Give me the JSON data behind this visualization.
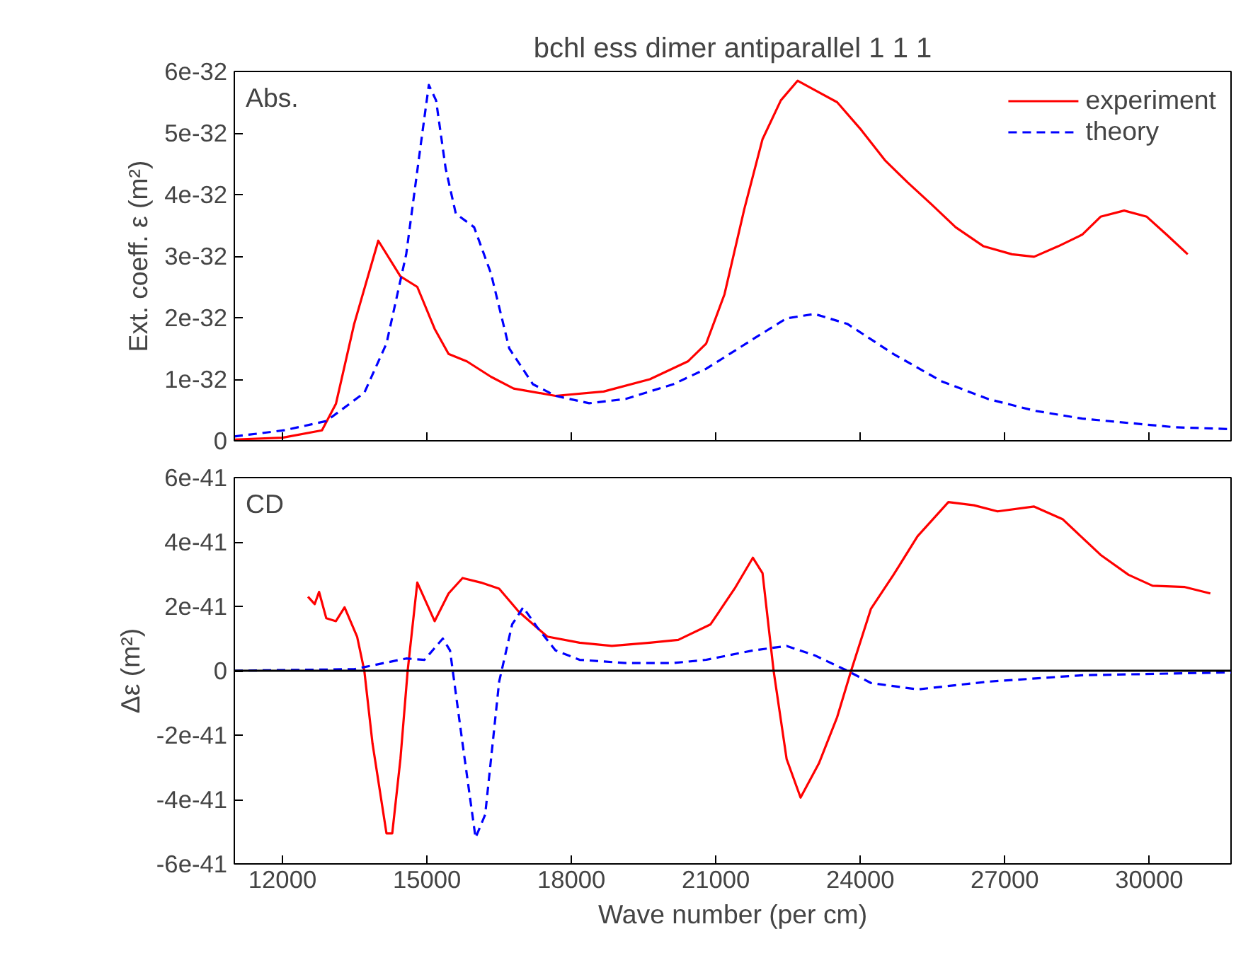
{
  "chart_data": [
    {
      "type": "line",
      "title": "bchl ess dimer antiparallel 1 1 1",
      "ylabel": "Ext. coeff. ε (m²)",
      "annotations": [
        "Abs."
      ],
      "xlim": [
        11000,
        31700
      ],
      "xticks": [
        12000,
        15000,
        18000,
        21000,
        24000,
        27000,
        30000
      ],
      "ylim": [
        0,
        6e-32
      ],
      "yticks": [
        0,
        {
          "value": 1e-32,
          "label": "1e-32"
        },
        {
          "value": 2e-32,
          "label": "2e-32"
        },
        {
          "value": 3e-32,
          "label": "3e-32"
        },
        {
          "value": 4e-32,
          "label": "4e-32"
        },
        {
          "value": 5e-32,
          "label": "5e-32"
        },
        {
          "value": 6e-32,
          "label": "6e-32"
        }
      ],
      "tick_labels": "y",
      "legend": "top right",
      "grid": false,
      "series": [
        {
          "name": "experiment",
          "color": "#ff0000",
          "line_style": "solid",
          "x": [
            11000,
            12000,
            12820,
            13110,
            13490,
            13990,
            14450,
            14800,
            15160,
            15450,
            15830,
            16330,
            16800,
            17670,
            18670,
            19630,
            20420,
            20800,
            21180,
            21590,
            21970,
            22350,
            22700,
            23050,
            23520,
            24020,
            24510,
            24980,
            25480,
            25980,
            26560,
            27150,
            27610,
            28110,
            28610,
            28990,
            29480,
            29950,
            30360,
            30800
          ],
          "values": [
            2e-34,
            5e-34,
            1.7e-33,
            6e-33,
            1.9e-32,
            3.25e-32,
            2.67e-32,
            2.5e-32,
            1.82e-32,
            1.41e-32,
            1.29e-32,
            1.04e-32,
            8.5e-33,
            7.3e-33,
            8e-33,
            1e-32,
            1.29e-32,
            1.58e-32,
            2.38e-32,
            3.76e-32,
            4.9e-32,
            5.53e-32,
            5.85e-32,
            5.7e-32,
            5.5e-32,
            5.05e-32,
            4.56e-32,
            4.2e-32,
            3.84e-32,
            3.47e-32,
            3.16e-32,
            3.03e-32,
            2.99e-32,
            3.16e-32,
            3.35e-32,
            3.64e-32,
            3.74e-32,
            3.64e-32,
            3.35e-32,
            3.03e-32
          ]
        },
        {
          "name": "theory",
          "color": "#0000ff",
          "line_style": "dashed",
          "x": [
            11000,
            12030,
            12910,
            13700,
            14160,
            14570,
            14870,
            15040,
            15190,
            15390,
            15600,
            15980,
            16330,
            16710,
            17200,
            17670,
            18370,
            19130,
            20120,
            20800,
            21770,
            22470,
            23050,
            23730,
            24690,
            25680,
            26650,
            27610,
            28610,
            29570,
            30540,
            31700
          ],
          "values": [
            7e-34,
            1.7e-33,
            3.2e-33,
            7.8e-33,
            1.58e-32,
            3.03e-32,
            4.8e-32,
            5.78e-32,
            5.53e-32,
            4.42e-32,
            3.69e-32,
            3.47e-32,
            2.72e-32,
            1.5e-32,
            9.2e-33,
            7.3e-33,
            6.1e-33,
            6.8e-33,
            9.2e-33,
            1.17e-32,
            1.65e-32,
            1.99e-32,
            2.06e-32,
            1.9e-32,
            1.41e-32,
            9.7e-33,
            6.8e-33,
            4.9e-33,
            3.6e-33,
            2.9e-33,
            2.2e-33,
            1.9e-33
          ]
        }
      ]
    },
    {
      "type": "line",
      "xlabel": "Wave number (per cm)",
      "ylabel": "Δε (m²)",
      "annotations": [
        "CD"
      ],
      "xlim": [
        11000,
        31700
      ],
      "xticks": [
        12000,
        15000,
        18000,
        21000,
        24000,
        27000,
        30000
      ],
      "ylim": [
        -6e-41,
        6e-41
      ],
      "yticks": [
        {
          "value": -6e-41,
          "label": "-6e-41"
        },
        {
          "value": -4e-41,
          "label": "-4e-41"
        },
        {
          "value": -2e-41,
          "label": "-2e-41"
        },
        0,
        {
          "value": 2e-41,
          "label": "2e-41"
        },
        {
          "value": 4e-41,
          "label": "4e-41"
        },
        {
          "value": 6e-41,
          "label": "6e-41"
        }
      ],
      "grid": false,
      "ref_lines": [
        {
          "axis": "y",
          "value": 0,
          "color": "#000000",
          "line_style": "solid"
        }
      ],
      "series": [
        {
          "color": "#ff0000",
          "line_style": "solid",
          "x": [
            12530,
            12670,
            12760,
            12910,
            13110,
            13290,
            13550,
            13700,
            13870,
            14160,
            14280,
            14450,
            14600,
            14800,
            15160,
            15450,
            15740,
            16120,
            16500,
            16910,
            17500,
            18170,
            18840,
            19630,
            20220,
            20890,
            21390,
            21770,
            21970,
            22200,
            22470,
            22760,
            23140,
            23520,
            23810,
            24220,
            24690,
            25190,
            25830,
            26360,
            26850,
            27610,
            28200,
            28990,
            29570,
            30070,
            30740,
            31270
          ],
          "values": [
            2.3e-41,
            2.07e-41,
            2.45e-41,
            1.63e-41,
            1.54e-41,
            1.97e-41,
            1.06e-41,
            0,
            -2.26e-41,
            -5.05e-41,
            -5.05e-41,
            -2.74e-41,
            0,
            2.74e-41,
            1.54e-41,
            2.4e-41,
            2.88e-41,
            2.74e-41,
            2.55e-41,
            1.83e-41,
            1.06e-41,
            8.7e-42,
            7.7e-42,
            8.7e-42,
            9.6e-42,
            1.44e-41,
            2.55e-41,
            3.51e-41,
            3.03e-41,
            0,
            -2.74e-41,
            -3.94e-41,
            -2.88e-41,
            -1.44e-41,
            0,
            1.92e-41,
            2.98e-41,
            4.18e-41,
            5.24e-41,
            5.14e-41,
            4.95e-41,
            5.1e-41,
            4.71e-41,
            3.6e-41,
            2.98e-41,
            2.64e-41,
            2.6e-41,
            2.4e-41
          ]
        },
        {
          "color": "#0000ff",
          "line_style": "dashed",
          "x": [
            11000,
            13490,
            14570,
            14950,
            15330,
            15480,
            15740,
            16010,
            16210,
            16500,
            16770,
            17000,
            17290,
            17670,
            18170,
            19130,
            20120,
            20800,
            21770,
            22470,
            23050,
            23730,
            24220,
            25190,
            26650,
            28610,
            31700
          ],
          "values": [
            0,
            5e-43,
            3.8e-42,
            3.4e-42,
            1e-41,
            6.3e-42,
            -2.26e-41,
            -5.19e-41,
            -4.47e-41,
            -3.4e-42,
            1.44e-41,
            1.97e-41,
            1.35e-41,
            6.3e-42,
            3.4e-42,
            2.4e-42,
            2.4e-42,
            3.4e-42,
            6.3e-42,
            7.7e-42,
            4.8e-42,
            0,
            -3.8e-42,
            -5.8e-42,
            -3.4e-42,
            -1.4e-42,
            -5e-43
          ]
        }
      ]
    }
  ]
}
